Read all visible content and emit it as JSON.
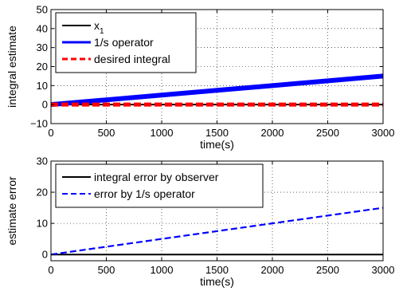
{
  "chart_data": [
    {
      "type": "line",
      "xlabel": "time(s)",
      "ylabel": "integral estimate",
      "xlim": [
        0,
        3000
      ],
      "ylim": [
        -10,
        50
      ],
      "xticks": [
        "0",
        "500",
        "1000",
        "1500",
        "2000",
        "2500",
        "3000"
      ],
      "yticks": [
        "−10",
        "0",
        "10",
        "20",
        "30",
        "40",
        "50"
      ],
      "xtick_values": [
        0,
        500,
        1000,
        1500,
        2000,
        2500,
        3000
      ],
      "ytick_values": [
        -10,
        0,
        10,
        20,
        30,
        40,
        50
      ],
      "grid": true,
      "legend_position": "top-left",
      "series": [
        {
          "name": "x",
          "name_subscript": "1",
          "color": "#000000",
          "style": "solid",
          "x": [
            0,
            3000
          ],
          "y": [
            0,
            0
          ]
        },
        {
          "name": "1/s operator",
          "color": "#0000ff",
          "style": "solid",
          "thick": true,
          "x": [
            0,
            500,
            1000,
            1500,
            2000,
            2500,
            3000
          ],
          "y": [
            0,
            2.5,
            5,
            7.5,
            10,
            12.5,
            15
          ]
        },
        {
          "name": "desired integral",
          "color": "#ff0000",
          "style": "dashed",
          "thick": true,
          "x": [
            0,
            3000
          ],
          "y": [
            0,
            0
          ]
        }
      ]
    },
    {
      "type": "line",
      "xlabel": "time(s)",
      "ylabel": "estimate error",
      "xlim": [
        0,
        3000
      ],
      "ylim": [
        -2,
        30
      ],
      "xticks": [
        "0",
        "500",
        "1000",
        "1500",
        "2000",
        "2500",
        "3000"
      ],
      "yticks": [
        "0",
        "10",
        "20",
        "30"
      ],
      "xtick_values": [
        0,
        500,
        1000,
        1500,
        2000,
        2500,
        3000
      ],
      "ytick_values": [
        0,
        10,
        20,
        30
      ],
      "grid": true,
      "legend_position": "top-left",
      "series": [
        {
          "name": "integral error by observer",
          "color": "#000000",
          "style": "solid",
          "x": [
            0,
            3000
          ],
          "y": [
            0,
            0
          ]
        },
        {
          "name": "error by 1/s operator",
          "color": "#0000ff",
          "style": "dashed",
          "x": [
            0,
            500,
            1000,
            1500,
            2000,
            2500,
            3000
          ],
          "y": [
            0,
            2.5,
            5,
            7.5,
            10,
            12.5,
            15
          ]
        }
      ]
    }
  ]
}
